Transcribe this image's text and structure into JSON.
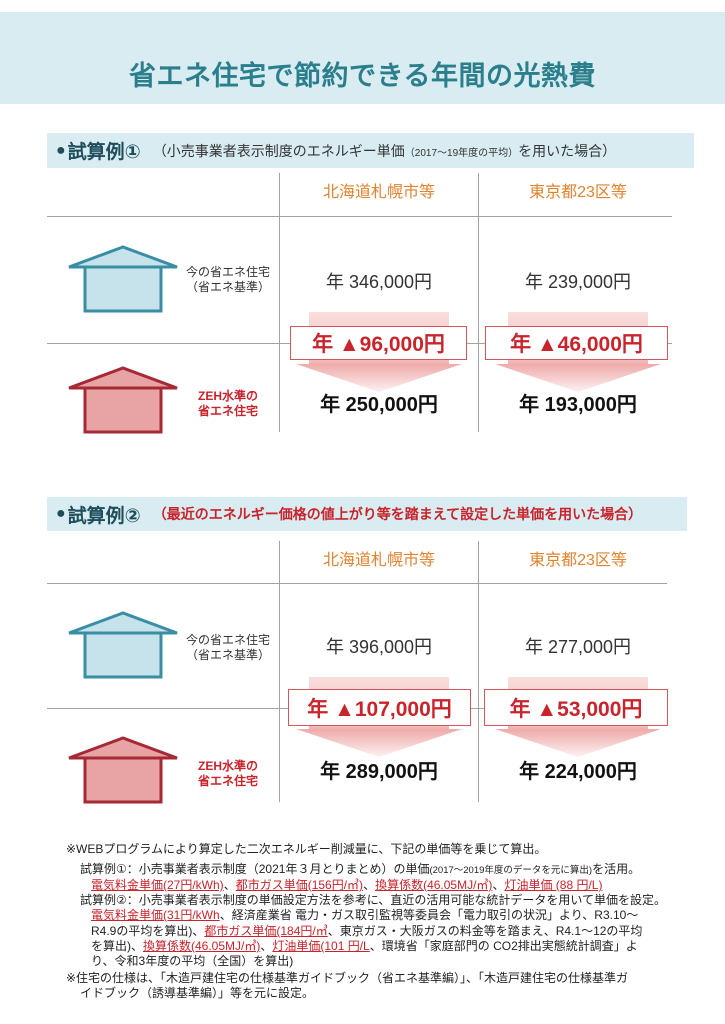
{
  "header": {
    "title": "省エネ住宅で節約できる年間の光熱費"
  },
  "sections": [
    {
      "bullet": "●",
      "label": "試算例①",
      "note": "（小売事業者表示制度のエネルギー単価",
      "note_small": "（2017～19年度の平均）",
      "note_end": "を用いた場合）",
      "columns": [
        "北海道札幌市等",
        "東京都23区等"
      ],
      "rows": [
        {
          "icon": "house-blue-icon",
          "label": [
            "今の省エネ住宅",
            "（省エネ基準）"
          ],
          "values": [
            "年 346,000円",
            "年 239,000円"
          ]
        },
        {
          "icon": "house-red-icon",
          "label": [
            "ZEH水準の",
            "省エネ住宅"
          ],
          "values": [
            "年 250,000円",
            "年 193,000円"
          ]
        }
      ],
      "savings": [
        "年 ▲96,000円",
        "年 ▲46,000円"
      ]
    },
    {
      "bullet": "●",
      "label": "試算例②",
      "note": "（最近のエネルギー価格の値上がり等を踏まえて設定した単価を用いた場合）",
      "columns": [
        "北海道札幌市等",
        "東京都23区等"
      ],
      "rows": [
        {
          "icon": "house-blue-icon",
          "label": [
            "今の省エネ住宅",
            "（省エネ基準）"
          ],
          "values": [
            "年 396,000円",
            "年 277,000円"
          ]
        },
        {
          "icon": "house-red-icon",
          "label": [
            "ZEH水準の",
            "省エネ住宅"
          ],
          "values": [
            "年 289,000円",
            "年 224,000円"
          ]
        }
      ],
      "savings": [
        "年 ▲107,000円",
        "年 ▲53,000円"
      ]
    }
  ],
  "footnotes": [
    [
      "※WEBプログラムにより算定した二次エネルギー削減量に、下記の単価等を乗じて算出。"
    ],
    [
      "試算例①：小売事業者表示制度（2021年３月とりまとめ）の単価",
      "(2017～2019年度のデータを元に算出)",
      "を活用。"
    ],
    [
      "電気料金単価(27円/kWh)",
      "、",
      "都市ガス単価(156円/㎥)",
      "、",
      "換算係数(46.05MJ/㎥)",
      "、",
      "灯油単価 (88 円/L)"
    ],
    [
      "試算例②：小売事業者表示制度の単価設定方法を参考に、直近の活用可能な統計データを用いて単価を設定。"
    ],
    [
      "電気料金単価(31円/kWh",
      "、経済産業省 電力・ガス取引監視等委員会「電力取引の状況」より、R3.10～"
    ],
    [
      "R4.9の平均を算出)、",
      "都市ガス単価(184円/㎥",
      "、東京ガス・大阪ガスの料金等を踏まえ、R4.1～12の平均"
    ],
    [
      "を算出)、",
      "換算係数(46.05MJ/㎥)",
      "、",
      "灯油単価(101 円/L",
      "、環境省「家庭部門の CO2排出実態統計調査」よ"
    ],
    [
      "り、令和3年度の平均（全国）を算出)"
    ],
    [
      "※住宅の仕様は、「木造戸建住宅の仕様基準ガイドブック（省エネ基準編）」、「木造戸建住宅の仕様基準ガ"
    ],
    [
      "イドブック（誘導基準編）」等を元に設定。"
    ]
  ],
  "colors": {
    "banner_bg": "#d8ecf1",
    "title": "#2b7f8d",
    "heading_dark": "#1f4d5c",
    "orange": "#e0832f",
    "accent_red": "#c9232b",
    "box_border": "#d4555a",
    "house_blue_stroke": "#3a8ea4",
    "house_blue_fill": "#c6e3ec",
    "house_red_stroke": "#a52a35",
    "house_red_fill": "#e8a3a5",
    "arrow_pink": "#f1bdbc"
  }
}
